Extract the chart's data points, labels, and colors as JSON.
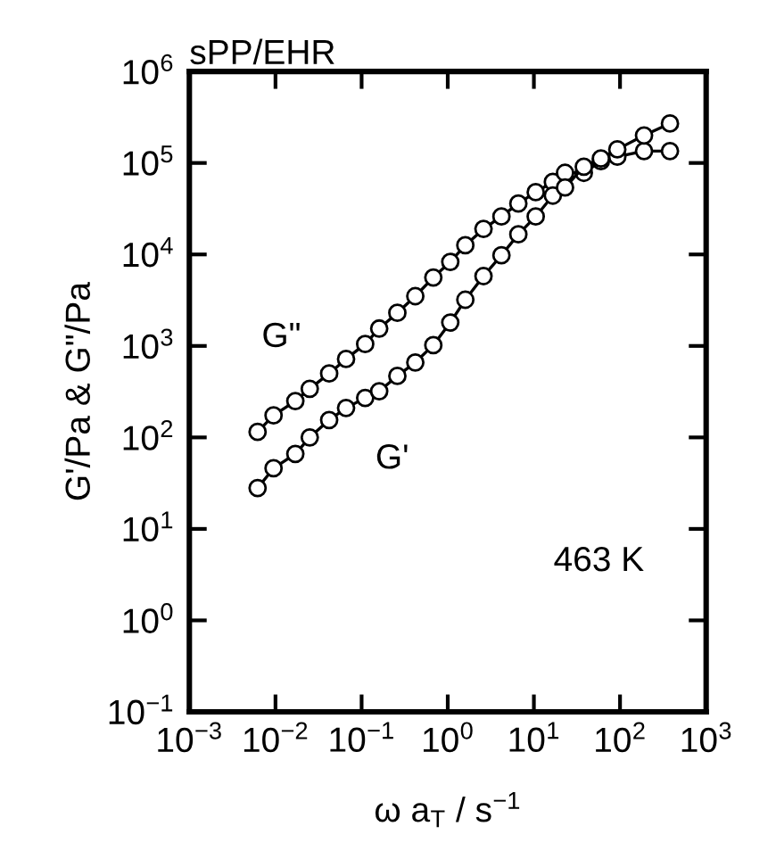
{
  "chart_data": {
    "type": "line",
    "title": "sPP/EHR",
    "xlabel": "ω a$_{T}$ / s$^{−1}$",
    "ylabel": "G'/Pa & G\"/Pa",
    "log": "xy",
    "marker": "circle",
    "line_style": "solid",
    "grid": false,
    "legend": false,
    "x": [
      0.0062,
      0.0095,
      0.017,
      0.025,
      0.042,
      0.066,
      0.11,
      0.16,
      0.26,
      0.42,
      0.68,
      1.07,
      1.6,
      2.6,
      4.2,
      6.6,
      10.5,
      16.6,
      23,
      38,
      60,
      93,
      190,
      380
    ],
    "series": [
      {
        "name": "G\"",
        "color": "#000000",
        "values": [
          115,
          174,
          250,
          340,
          500,
          720,
          1050,
          1550,
          2300,
          3500,
          5600,
          8300,
          12600,
          19000,
          26000,
          36000,
          48000,
          62000,
          78000,
          78000,
          105000,
          117000,
          135000,
          135000
        ]
      },
      {
        "name": "G'",
        "color": "#000000",
        "values": [
          28,
          46,
          66,
          100,
          155,
          210,
          270,
          320,
          470,
          660,
          1020,
          1800,
          3200,
          5800,
          9800,
          16600,
          26000,
          44000,
          54000,
          91000,
          112000,
          141000,
          200000,
          270000
        ]
      }
    ],
    "annotations": [
      "463 K"
    ],
    "xlim": [
      0.001,
      1000
    ],
    "ylim": [
      0.1,
      1000000
    ],
    "xticks": [
      {
        "value": 0.001,
        "label": "10$^{−3}$"
      },
      {
        "value": 0.01,
        "label": "10$^{−2}$"
      },
      {
        "value": 0.1,
        "label": "10$^{−1}$"
      },
      {
        "value": 1,
        "label": "10$^{0}$"
      },
      {
        "value": 10,
        "label": "10$^{1}$"
      },
      {
        "value": 100,
        "label": "10$^{2}$"
      },
      {
        "value": 1000,
        "label": "10$^{3}$"
      }
    ],
    "yticks": [
      {
        "value": 0.1,
        "label": "10$^{−1}$"
      },
      {
        "value": 1,
        "label": "10$^{0}$"
      },
      {
        "value": 10,
        "label": "10$^{1}$"
      },
      {
        "value": 100,
        "label": "10$^{2}$"
      },
      {
        "value": 1000,
        "label": "10$^{3}$"
      },
      {
        "value": 10000,
        "label": "10$^{4}$"
      },
      {
        "value": 100000,
        "label": "10$^{5}$"
      },
      {
        "value": 1000000,
        "label": "10$^{6}$"
      }
    ]
  }
}
